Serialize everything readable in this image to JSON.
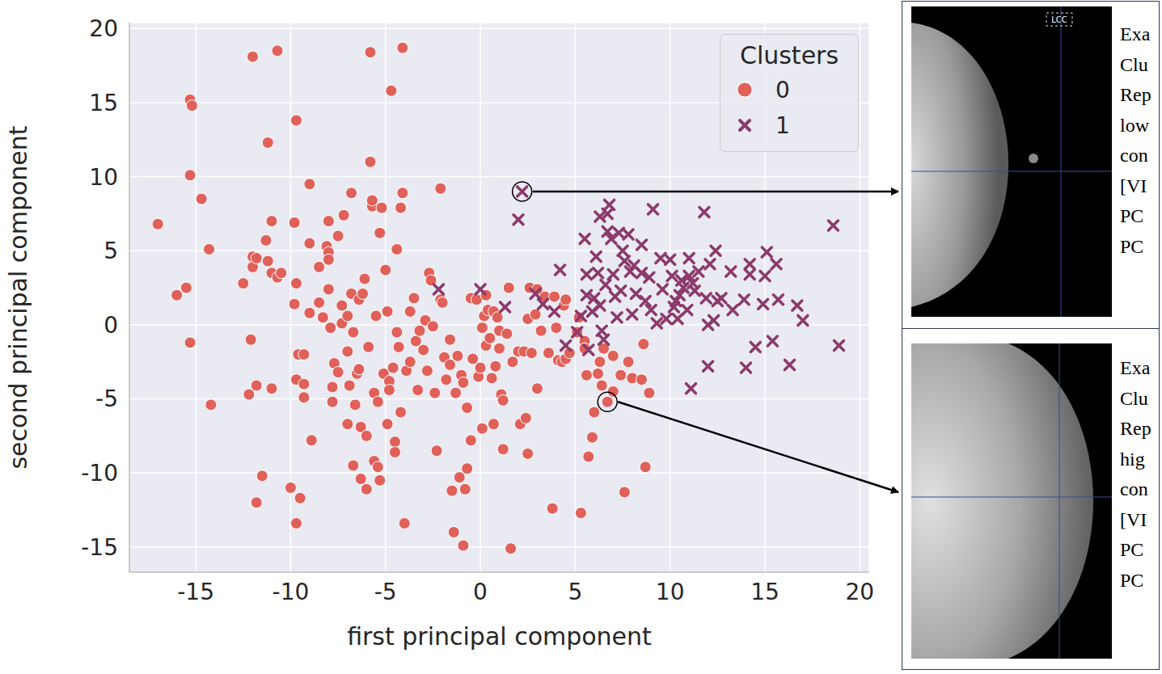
{
  "chart_data": {
    "type": "scatter",
    "x_label": "first principal component",
    "y_label": "second principal component",
    "legend_title": "Clusters",
    "legend": "upper right",
    "grid": true,
    "xlim": [
      -18.5,
      20.5
    ],
    "ylim": [
      -16.7,
      20.4
    ],
    "xticks": [
      -15,
      -10,
      -5,
      0,
      5,
      10,
      15,
      20
    ],
    "yticks": [
      -15,
      -10,
      -5,
      0,
      5,
      10,
      15,
      20
    ],
    "series": [
      {
        "name": "0",
        "color": "#e0605a",
        "marker": "circle",
        "x": [
          -17,
          -16,
          -15.3,
          -15.2,
          -15.3,
          -15.3,
          -15.5,
          -14.7,
          -14.3,
          -14.2,
          -12.5,
          -12,
          -10.7,
          -12,
          -12,
          -11.8,
          -12.1,
          -12.2,
          -11.8,
          -11.8,
          -11.5,
          -11.2,
          -11.3,
          -11.2,
          -11,
          -11,
          -11,
          -10.7,
          -10.5,
          -10,
          -9.7,
          -9.8,
          -9.7,
          -9.8,
          -9.7,
          -9.5,
          -9.6,
          -9.3,
          -9.3,
          -9.3,
          -9.7,
          -9,
          -9,
          -9,
          -8.9,
          -8.5,
          -8.5,
          -8.3,
          -8.1,
          -8,
          -8,
          -8,
          -8,
          -7.9,
          -7.8,
          -7.7,
          -7.8,
          -7.5,
          -7.5,
          -7.3,
          -7.2,
          -7.3,
          -7,
          -7,
          -7,
          -6.9,
          -6.8,
          -6.8,
          -6.7,
          -6.7,
          -6.6,
          -6.5,
          -6.4,
          -6.4,
          -6.3,
          -6.3,
          -6.2,
          -6.1,
          -6,
          -6,
          -5.9,
          -5.8,
          -5.8,
          -5.7,
          -5.7,
          -5.6,
          -5.6,
          -5.5,
          -5.4,
          -5.4,
          -5.3,
          -5.3,
          -5.2,
          -5.1,
          -5,
          -4.9,
          -4.9,
          -4.8,
          -4.8,
          -4.7,
          -4.6,
          -4.5,
          -4.5,
          -4.4,
          -4.3,
          -4.2,
          -4.2,
          -4.1,
          -4,
          -4.1,
          -4.4,
          -3.9,
          -3.7,
          -3.7,
          -3.5,
          -3.4,
          -3.3,
          -3.2,
          -3,
          -2.9,
          -2.8,
          -2.7,
          -2.6,
          -2.5,
          -2.4,
          -2.3,
          -2.1,
          -2,
          -2.1,
          -1.9,
          -1.8,
          -1.6,
          -1.6,
          -1.5,
          -1.4,
          -1.3,
          -1.2,
          -1.1,
          -1,
          -0.9,
          -0.9,
          -0.8,
          -0.7,
          -0.7,
          -0.5,
          -0.5,
          -0.4,
          -0.2,
          -0.1,
          0,
          0.1,
          0.1,
          0.2,
          0.3,
          0.3,
          0.4,
          0.5,
          0.6,
          0.7,
          0.7,
          0.8,
          0.9,
          1.0,
          1.0,
          1.1,
          1.2,
          1.2,
          1.4,
          1.5,
          1.6,
          1.7,
          2,
          2.1,
          2.3,
          2.4,
          2.5,
          2.5,
          2.6,
          2.7,
          2.9,
          3.0,
          3.2,
          3.4,
          3.6,
          3.8,
          3.9,
          4.0,
          4.1,
          4.3,
          4.4,
          4.5,
          4.7,
          5.1,
          5.2,
          5.3,
          5.5,
          5.6,
          5.7,
          5.9,
          6.0,
          6.2,
          6.3,
          6.4,
          6.5,
          6.7,
          7.0,
          7.0,
          7.4,
          7.6,
          7.8,
          8.0,
          8.5,
          8.6,
          8.7,
          8.9,
          5.5,
          4.5,
          3.0
        ],
        "values": [
          6.8,
          2,
          15.2,
          14.8,
          10.1,
          -1.2,
          2.5,
          8.5,
          5.1,
          -5.4,
          2.8,
          18.1,
          18.5,
          4.6,
          3.9,
          4.5,
          -1,
          -4.7,
          -4.1,
          -12,
          -10.2,
          12.3,
          5.7,
          4.3,
          7,
          3.5,
          -4.3,
          3.2,
          3.5,
          -11,
          13.8,
          6.9,
          2.8,
          1.4,
          -3.7,
          -11.7,
          -2,
          -2,
          -4.9,
          -4,
          -13.4,
          9.5,
          5.5,
          0.8,
          -7.8,
          3.9,
          1.5,
          0.5,
          5.3,
          4.9,
          4.4,
          2.4,
          7,
          -0.2,
          -4.2,
          -2.6,
          -5.2,
          -3.2,
          6,
          1.3,
          7.4,
          0.1,
          0.6,
          -1.8,
          -6.7,
          -4.1,
          8.9,
          2.1,
          -0.5,
          -9.5,
          -5.4,
          -3.3,
          1.7,
          -3,
          -6.9,
          -10.4,
          2.1,
          3.1,
          -7.5,
          -11.1,
          -1.5,
          18.4,
          11,
          8,
          8.4,
          -4.6,
          -9.2,
          0.6,
          -5.2,
          -9.6,
          6.2,
          -10.5,
          7.9,
          -3.3,
          3.7,
          0.9,
          -6.7,
          -3.8,
          -4.4,
          15.8,
          -2.9,
          -7.9,
          -8.6,
          -0.5,
          -1.5,
          -5.9,
          7.9,
          8.9,
          -13.4,
          18.7,
          5.1,
          -3.1,
          0.9,
          -2.5,
          1.8,
          -1.1,
          -4.4,
          -0.4,
          -1.7,
          0.3,
          -3.1,
          3.5,
          3,
          -0.1,
          -4.6,
          -8.5,
          1.7,
          1.5,
          9.2,
          -2.2,
          -3.7,
          -2.7,
          -1,
          -11.2,
          -14,
          -4.6,
          -2.1,
          -10.3,
          -3.4,
          -3.9,
          -14.9,
          -11.1,
          -5.6,
          -9.7,
          1.8,
          -7.8,
          -2.3,
          1.7,
          -3.5,
          -2.9,
          -0.2,
          -7,
          0.6,
          2,
          -1.4,
          1,
          -0.9,
          -3.6,
          0.9,
          -6.7,
          -2.8,
          0.5,
          -0.4,
          -1.6,
          -4.7,
          -8.4,
          -5.1,
          -0.6,
          2.5,
          -15.1,
          -2.5,
          -1.8,
          -6.7,
          -1.8,
          -6.3,
          0.4,
          -8.7,
          2.5,
          -1.9,
          0.7,
          -4.3,
          -0.4,
          1.9,
          -1.9,
          -12.4,
          1.9,
          -0.2,
          -2.4,
          -2.5,
          1.3,
          -2.3,
          -1.9,
          -0.5,
          0.5,
          -12.7,
          -1.1,
          -3.4,
          -8.9,
          -7.6,
          -5.9,
          -3.3,
          -2.5,
          -4.1,
          -1.6,
          -5.2,
          -2.1,
          -4.5,
          -3.4,
          -11.3,
          -2.5,
          -3.6,
          -3.7,
          -1.3,
          -9.6,
          -4.6,
          -1.6,
          1.7,
          2.4
        ]
      },
      {
        "name": "1",
        "color": "#8b3a6b",
        "marker": "x",
        "x": [
          2.0,
          2.2,
          -2.2,
          0,
          1.3,
          2.9,
          3.3,
          3.9,
          4.2,
          4.5,
          5.1,
          5.3,
          5.5,
          5.6,
          5.6,
          5.7,
          5.9,
          6.0,
          6.1,
          6.2,
          6.3,
          6.3,
          6.4,
          6.6,
          6.7,
          6.7,
          6.8,
          6.9,
          7.0,
          7.1,
          7.2,
          7.3,
          7.4,
          7.6,
          7.8,
          7.9,
          8.0,
          8.1,
          8.5,
          8.7,
          8.9,
          9.1,
          9.3,
          9.5,
          9.6,
          9.8,
          10.0,
          10.1,
          10.2,
          10.3,
          10.4,
          10.6,
          10.7,
          11.0,
          11.0,
          11.1,
          11.2,
          11.3,
          11.5,
          11.8,
          11.9,
          12.0,
          12.1,
          12.3,
          12.4,
          12.5,
          13.2,
          13.9,
          14.0,
          14.2,
          14.5,
          14.9,
          15.0,
          15.1,
          15.4,
          15.6,
          15.7,
          16.3,
          16.7,
          17.0,
          18.6,
          18.9,
          8.5,
          10.5,
          12.0,
          9.0,
          7.5,
          6.5,
          10.9,
          12.7,
          13.3,
          14.2,
          8.2
        ],
        "values": [
          7.1,
          9.0,
          2.4,
          2.4,
          1.2,
          2.1,
          1.4,
          0.9,
          3.7,
          -1.4,
          -0.5,
          0.6,
          5.8,
          3.4,
          2,
          -1.7,
          0.9,
          1.8,
          4.6,
          3.5,
          7.3,
          1.3,
          -0.4,
          2.7,
          6.3,
          7.5,
          8.1,
          5.8,
          3.4,
          1.9,
          0.5,
          6.2,
          2.3,
          4.3,
          6.1,
          3.6,
          0.7,
          4.0,
          5.4,
          1.6,
          3.2,
          7.8,
          0.1,
          4.5,
          2.4,
          0.4,
          4.4,
          3.3,
          1.2,
          1.6,
          0.4,
          3.0,
          2.5,
          4.5,
          3.3,
          -4.3,
          2.8,
          2.3,
          3.6,
          7.6,
          1.8,
          -2.8,
          4.1,
          0.3,
          5.0,
          1.6,
          3.6,
          1.7,
          -2.9,
          4.1,
          -1.5,
          1.4,
          3.3,
          4.9,
          -1.1,
          4.1,
          1.7,
          -2.7,
          1.3,
          0.3,
          6.7,
          -1.4,
          3.5,
          2.0,
          0.0,
          1.0,
          5.0,
          -1.0,
          1.0,
          1.8,
          1.0,
          3.4,
          2.1
        ]
      }
    ],
    "panels": [
      {
        "image_label": "LCC",
        "point": [
          2.2,
          9.0
        ],
        "text": [
          "Exa",
          "Clu",
          "Rep",
          "low",
          "con",
          "[VI",
          "PC",
          "PC"
        ]
      },
      {
        "point": [
          6.7,
          -5.2
        ],
        "text": [
          "Exa",
          "Clu",
          "Rep",
          "hig",
          "con",
          "[VI",
          "PC",
          "PC"
        ]
      }
    ]
  }
}
